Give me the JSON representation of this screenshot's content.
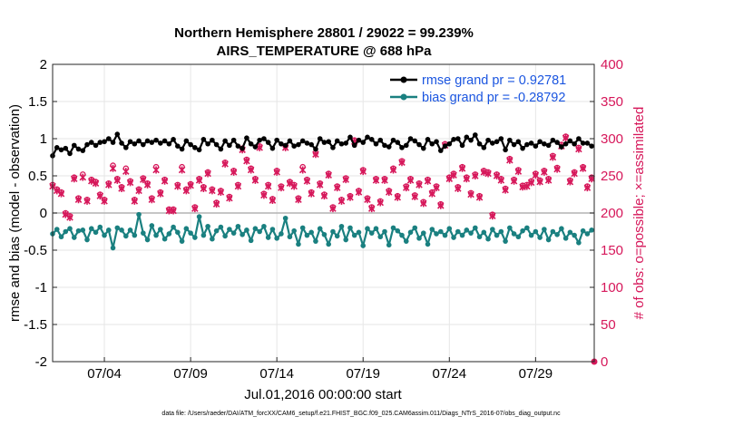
{
  "chart_data": {
    "type": "line",
    "title_line1": "Northern Hemisphere 28801 / 29022 = 99.239%",
    "title_line2": "AIRS_TEMPERATURE @ 688 hPa",
    "xlabel": "Jul.01,2016 00:00:00 start",
    "ylabel_left": "rmse and bias (model - observation)",
    "ylabel_right": "# of obs: o=possible; ×=assimilated",
    "xlim": [
      1,
      32.4
    ],
    "ylim_left": [
      -2,
      2
    ],
    "ylim_right": [
      0,
      400
    ],
    "x_ticks": [
      4,
      9,
      14,
      19,
      24,
      29
    ],
    "x_tick_labels": [
      "07/04",
      "07/09",
      "07/14",
      "07/19",
      "07/24",
      "07/29"
    ],
    "y_left_ticks": [
      -2,
      -1.5,
      -1,
      -0.5,
      0,
      0.5,
      1,
      1.5,
      2
    ],
    "y_left_tick_labels": [
      "-2",
      "-1.5",
      "-1",
      "-0.5",
      "0",
      "0.5",
      "1",
      "1.5",
      "2"
    ],
    "y_right_ticks": [
      0,
      50,
      100,
      150,
      200,
      250,
      300,
      350,
      400
    ],
    "y_right_tick_labels": [
      "0",
      "50",
      "100",
      "150",
      "200",
      "250",
      "300",
      "350",
      "400"
    ],
    "grid": true,
    "legend_position": "top-right",
    "colors": {
      "rmse": "#000000",
      "bias": "#1a8080",
      "obs": "#d6175a",
      "legend_text": "#1a55e0",
      "zero_line": "#b4b4b4"
    },
    "series": [
      {
        "name": "rmse grand pr = 0.92781",
        "axis": "left",
        "x": [
          1.0,
          1.25,
          1.5,
          1.75,
          2.0,
          2.25,
          2.5,
          2.75,
          3.0,
          3.25,
          3.5,
          3.75,
          4.0,
          4.25,
          4.5,
          4.75,
          5.0,
          5.25,
          5.5,
          5.75,
          6.0,
          6.25,
          6.5,
          6.75,
          7.0,
          7.25,
          7.5,
          7.75,
          8.0,
          8.25,
          8.5,
          8.75,
          9.0,
          9.25,
          9.5,
          9.75,
          10.0,
          10.25,
          10.5,
          10.75,
          11.0,
          11.25,
          11.5,
          11.75,
          12.0,
          12.25,
          12.5,
          12.75,
          13.0,
          13.25,
          13.5,
          13.75,
          14.0,
          14.25,
          14.5,
          14.75,
          15.0,
          15.25,
          15.5,
          15.75,
          16.0,
          16.25,
          16.5,
          16.75,
          17.0,
          17.25,
          17.5,
          17.75,
          18.0,
          18.25,
          18.5,
          18.75,
          19.0,
          19.25,
          19.5,
          19.75,
          20.0,
          20.25,
          20.5,
          20.75,
          21.0,
          21.25,
          21.5,
          21.75,
          22.0,
          22.25,
          22.5,
          22.75,
          23.0,
          23.25,
          23.5,
          23.75,
          24.0,
          24.25,
          24.5,
          24.75,
          25.0,
          25.25,
          25.5,
          25.75,
          26.0,
          26.25,
          26.5,
          26.75,
          27.0,
          27.25,
          27.5,
          27.75,
          28.0,
          28.25,
          28.5,
          28.75,
          29.0,
          29.25,
          29.5,
          29.75,
          30.0,
          30.25,
          30.5,
          30.75,
          31.0,
          31.25,
          31.5,
          31.75,
          32.0,
          32.25
        ],
        "values": [
          0.77,
          0.88,
          0.85,
          0.87,
          0.8,
          0.91,
          0.86,
          0.84,
          0.92,
          0.95,
          0.91,
          0.95,
          0.96,
          1.0,
          0.95,
          1.06,
          0.94,
          0.88,
          0.96,
          0.93,
          0.97,
          0.92,
          0.97,
          0.95,
          0.98,
          0.94,
          0.97,
          0.93,
          0.99,
          0.9,
          0.86,
          0.97,
          0.92,
          0.88,
          0.85,
          0.99,
          0.93,
          0.98,
          0.92,
          0.86,
          0.97,
          0.91,
          0.98,
          0.9,
          0.87,
          1.01,
          0.93,
          0.89,
          0.98,
          1.0,
          0.95,
          0.87,
          0.98,
          0.93,
          0.91,
          0.97,
          0.9,
          0.92,
          0.97,
          0.94,
          0.92,
          0.86,
          1.0,
          0.95,
          0.96,
          0.88,
          0.97,
          0.93,
          0.94,
          1.02,
          0.91,
          0.98,
          0.95,
          1.02,
          0.99,
          0.93,
          0.98,
          0.91,
          0.89,
          0.98,
          0.95,
          0.88,
          0.91,
          1.0,
          0.97,
          0.92,
          0.87,
          0.99,
          0.93,
          0.96,
          0.84,
          0.9,
          0.93,
          0.99,
          1.0,
          0.91,
          1.02,
          0.98,
          1.05,
          0.93,
          0.88,
          0.98,
          0.94,
          0.96,
          1.0,
          0.85,
          0.98,
          0.92,
          0.96,
          0.87,
          0.92,
          0.94,
          0.9,
          0.96,
          0.93,
          0.91,
          0.98,
          0.95,
          0.89,
          0.93,
          0.97,
          0.93,
          1.0,
          0.94,
          0.94,
          0.9
        ]
      },
      {
        "name": "bias grand pr = -0.28792",
        "axis": "left",
        "x": [
          1.0,
          1.25,
          1.5,
          1.75,
          2.0,
          2.25,
          2.5,
          2.75,
          3.0,
          3.25,
          3.5,
          3.75,
          4.0,
          4.25,
          4.5,
          4.75,
          5.0,
          5.25,
          5.5,
          5.75,
          6.0,
          6.25,
          6.5,
          6.75,
          7.0,
          7.25,
          7.5,
          7.75,
          8.0,
          8.25,
          8.5,
          8.75,
          9.0,
          9.25,
          9.5,
          9.75,
          10.0,
          10.25,
          10.5,
          10.75,
          11.0,
          11.25,
          11.5,
          11.75,
          12.0,
          12.25,
          12.5,
          12.75,
          13.0,
          13.25,
          13.5,
          13.75,
          14.0,
          14.25,
          14.5,
          14.75,
          15.0,
          15.25,
          15.5,
          15.75,
          16.0,
          16.25,
          16.5,
          16.75,
          17.0,
          17.25,
          17.5,
          17.75,
          18.0,
          18.25,
          18.5,
          18.75,
          19.0,
          19.25,
          19.5,
          19.75,
          20.0,
          20.25,
          20.5,
          20.75,
          21.0,
          21.25,
          21.5,
          21.75,
          22.0,
          22.25,
          22.5,
          22.75,
          23.0,
          23.25,
          23.5,
          23.75,
          24.0,
          24.25,
          24.5,
          24.75,
          25.0,
          25.25,
          25.5,
          25.75,
          26.0,
          26.25,
          26.5,
          26.75,
          27.0,
          27.25,
          27.5,
          27.75,
          28.0,
          28.25,
          28.5,
          28.75,
          29.0,
          29.25,
          29.5,
          29.75,
          30.0,
          30.25,
          30.5,
          30.75,
          31.0,
          31.25,
          31.5,
          31.75,
          32.0,
          32.25
        ],
        "values": [
          -0.28,
          -0.22,
          -0.32,
          -0.25,
          -0.21,
          -0.33,
          -0.24,
          -0.23,
          -0.36,
          -0.21,
          -0.26,
          -0.19,
          -0.3,
          -0.23,
          -0.47,
          -0.2,
          -0.23,
          -0.31,
          -0.23,
          -0.3,
          -0.02,
          -0.27,
          -0.36,
          -0.17,
          -0.3,
          -0.22,
          -0.35,
          -0.28,
          -0.19,
          -0.26,
          -0.38,
          -0.21,
          -0.27,
          -0.33,
          -0.05,
          -0.3,
          -0.18,
          -0.35,
          -0.24,
          -0.19,
          -0.31,
          -0.22,
          -0.27,
          -0.18,
          -0.29,
          -0.23,
          -0.37,
          -0.21,
          -0.25,
          -0.18,
          -0.33,
          -0.22,
          -0.34,
          -0.28,
          -0.07,
          -0.32,
          -0.24,
          -0.42,
          -0.2,
          -0.3,
          -0.26,
          -0.38,
          -0.21,
          -0.29,
          -0.42,
          -0.25,
          -0.31,
          -0.18,
          -0.36,
          -0.2,
          -0.3,
          -0.26,
          -0.44,
          -0.21,
          -0.27,
          -0.21,
          -0.32,
          -0.25,
          -0.43,
          -0.2,
          -0.24,
          -0.3,
          -0.38,
          -0.26,
          -0.2,
          -0.34,
          -0.27,
          -0.42,
          -0.22,
          -0.28,
          -0.25,
          -0.3,
          -0.21,
          -0.33,
          -0.25,
          -0.3,
          -0.23,
          -0.27,
          -0.2,
          -0.32,
          -0.26,
          -0.35,
          -0.22,
          -0.3,
          -0.25,
          -0.38,
          -0.2,
          -0.28,
          -0.32,
          -0.24,
          -0.2,
          -0.3,
          -0.25,
          -0.33,
          -0.22,
          -0.36,
          -0.25,
          -0.29,
          -0.21,
          -0.34,
          -0.26,
          -0.3,
          -0.4,
          -0.24,
          -0.28,
          -0.23
        ]
      },
      {
        "name": "obs possible",
        "axis": "right",
        "marker": "o",
        "x": [
          1.0,
          1.25,
          1.5,
          1.75,
          2.0,
          2.25,
          2.5,
          2.75,
          3.0,
          3.25,
          3.5,
          3.75,
          4.0,
          4.25,
          4.5,
          4.75,
          5.0,
          5.25,
          5.5,
          5.75,
          6.0,
          6.25,
          6.5,
          6.75,
          7.0,
          7.25,
          7.5,
          7.75,
          8.0,
          8.25,
          8.5,
          8.75,
          9.0,
          9.25,
          9.5,
          9.75,
          10.0,
          10.25,
          10.5,
          10.75,
          11.0,
          11.25,
          11.5,
          11.75,
          12.0,
          12.25,
          12.5,
          12.75,
          13.0,
          13.25,
          13.5,
          13.75,
          14.0,
          14.25,
          14.5,
          14.75,
          15.0,
          15.25,
          15.5,
          15.75,
          16.0,
          16.25,
          16.5,
          16.75,
          17.0,
          17.25,
          17.5,
          17.75,
          18.0,
          18.25,
          18.5,
          18.75,
          19.0,
          19.25,
          19.5,
          19.75,
          20.0,
          20.25,
          20.5,
          20.75,
          21.0,
          21.25,
          21.5,
          21.75,
          22.0,
          22.25,
          22.5,
          22.75,
          23.0,
          23.25,
          23.5,
          23.75,
          24.0,
          24.25,
          24.5,
          24.75,
          25.0,
          25.25,
          25.5,
          25.75,
          26.0,
          26.25,
          26.5,
          26.75,
          27.0,
          27.25,
          27.5,
          27.75,
          28.0,
          28.25,
          28.5,
          28.75,
          29.0,
          29.25,
          29.5,
          29.75,
          30.0,
          30.25,
          30.5,
          30.75,
          31.0,
          31.25,
          31.5,
          31.75,
          32.0,
          32.25
        ],
        "values": [
          238,
          232,
          228,
          200,
          196,
          248,
          220,
          252,
          218,
          245,
          242,
          225,
          218,
          240,
          264,
          246,
          235,
          260,
          243,
          218,
          232,
          247,
          240,
          220,
          262,
          228,
          245,
          205,
          205,
          238,
          262,
          232,
          239,
          208,
          246,
          235,
          255,
          232,
          214,
          230,
          268,
          222,
          257,
          238,
          287,
          272,
          260,
          246,
          290,
          226,
          238,
          219,
          257,
          236,
          290,
          242,
          238,
          220,
          262,
          245,
          228,
          281,
          240,
          225,
          253,
          208,
          236,
          218,
          247,
          223,
          298,
          230,
          258,
          220,
          208,
          246,
          216,
          246,
          230,
          260,
          223,
          270,
          236,
          246,
          224,
          240,
          215,
          245,
          228,
          236,
          212,
          293,
          248,
          253,
          235,
          262,
          248,
          227,
          252,
          223,
          257,
          255,
          198,
          252,
          246,
          233,
          273,
          245,
          258,
          237,
          238,
          243,
          253,
          244,
          257,
          246,
          277,
          261,
          292,
          303,
          244,
          255,
          288,
          262,
          236,
          248
        ]
      },
      {
        "name": "obs assimilated",
        "axis": "right",
        "marker": "x",
        "x": [
          1.0,
          1.25,
          1.5,
          1.75,
          2.0,
          2.25,
          2.5,
          2.75,
          3.0,
          3.25,
          3.5,
          3.75,
          4.0,
          4.25,
          4.5,
          4.75,
          5.0,
          5.25,
          5.5,
          5.75,
          6.0,
          6.25,
          6.5,
          6.75,
          7.0,
          7.25,
          7.5,
          7.75,
          8.0,
          8.25,
          8.5,
          8.75,
          9.0,
          9.25,
          9.5,
          9.75,
          10.0,
          10.25,
          10.5,
          10.75,
          11.0,
          11.25,
          11.5,
          11.75,
          12.0,
          12.25,
          12.5,
          12.75,
          13.0,
          13.25,
          13.5,
          13.75,
          14.0,
          14.25,
          14.5,
          14.75,
          15.0,
          15.25,
          15.5,
          15.75,
          16.0,
          16.25,
          16.5,
          16.75,
          17.0,
          17.25,
          17.5,
          17.75,
          18.0,
          18.25,
          18.5,
          18.75,
          19.0,
          19.25,
          19.5,
          19.75,
          20.0,
          20.25,
          20.5,
          20.75,
          21.0,
          21.25,
          21.5,
          21.75,
          22.0,
          22.25,
          22.5,
          22.75,
          23.0,
          23.25,
          23.5,
          23.75,
          24.0,
          24.25,
          24.5,
          24.75,
          25.0,
          25.25,
          25.5,
          25.75,
          26.0,
          26.25,
          26.5,
          26.75,
          27.0,
          27.25,
          27.5,
          27.75,
          28.0,
          28.25,
          28.5,
          28.75,
          29.0,
          29.25,
          29.5,
          29.75,
          30.0,
          30.25,
          30.5,
          30.75,
          31.0,
          31.25,
          31.5,
          31.75,
          32.0,
          32.25
        ],
        "values": [
          236,
          230,
          226,
          198,
          194,
          246,
          218,
          248,
          216,
          243,
          240,
          223,
          216,
          238,
          260,
          244,
          233,
          256,
          241,
          216,
          230,
          245,
          238,
          218,
          258,
          226,
          243,
          203,
          203,
          236,
          258,
          230,
          237,
          206,
          244,
          233,
          253,
          230,
          212,
          228,
          266,
          220,
          255,
          236,
          285,
          270,
          258,
          244,
          288,
          224,
          236,
          217,
          255,
          234,
          288,
          240,
          236,
          218,
          258,
          243,
          226,
          279,
          238,
          223,
          251,
          206,
          234,
          216,
          245,
          221,
          296,
          228,
          256,
          218,
          206,
          244,
          214,
          244,
          228,
          258,
          221,
          268,
          234,
          244,
          222,
          238,
          213,
          243,
          226,
          234,
          210,
          291,
          246,
          251,
          233,
          260,
          246,
          225,
          250,
          221,
          255,
          253,
          196,
          250,
          244,
          231,
          271,
          243,
          256,
          235,
          236,
          241,
          251,
          242,
          255,
          244,
          275,
          259,
          290,
          301,
          242,
          253,
          286,
          260,
          234,
          246
        ]
      }
    ],
    "footer": "data file: /Users/raeder/DAI/ATM_forcXX/CAM6_setup/f.e21.FHIST_BGC.f09_025.CAM6assim.011/Diags_NTrS_2016-07/obs_diag_output.nc"
  }
}
